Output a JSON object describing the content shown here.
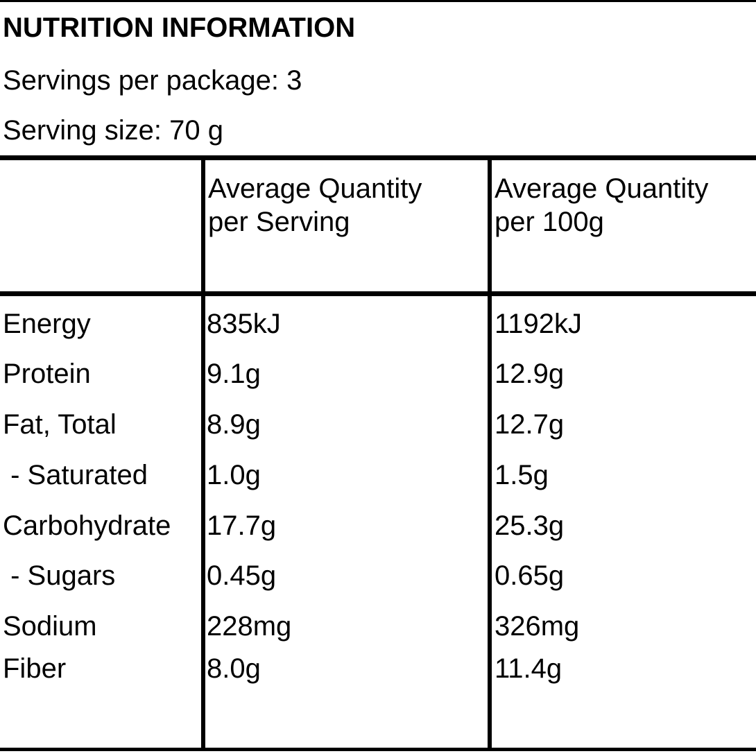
{
  "header": {
    "title": "NUTRITION INFORMATION",
    "servings_per_package": "Servings per package: 3",
    "serving_size": "Serving size:  70 g"
  },
  "table": {
    "columns": [
      "",
      "Average Quantity\nper Serving",
      "Average Quantity\nper 100g"
    ],
    "rows": [
      {
        "nutrient": "Energy",
        "per_serving": "835kJ",
        "per_100g": "1192kJ"
      },
      {
        "nutrient": "Protein",
        "per_serving": "9.1g",
        "per_100g": "12.9g"
      },
      {
        "nutrient": "Fat, Total",
        "per_serving": "8.9g",
        "per_100g": "12.7g"
      },
      {
        "nutrient": " - Saturated",
        "per_serving": "1.0g",
        "per_100g": "1.5g"
      },
      {
        "nutrient": "Carbohydrate",
        "per_serving": "17.7g",
        "per_100g": "25.3g"
      },
      {
        "nutrient": " - Sugars",
        "per_serving": "0.45g",
        "per_100g": "0.65g"
      },
      {
        "nutrient": "Sodium",
        "per_serving": "228mg",
        "per_100g": "326mg"
      },
      {
        "nutrient": "Fiber",
        "per_serving": "8.0g",
        "per_100g": "11.4g"
      }
    ]
  }
}
